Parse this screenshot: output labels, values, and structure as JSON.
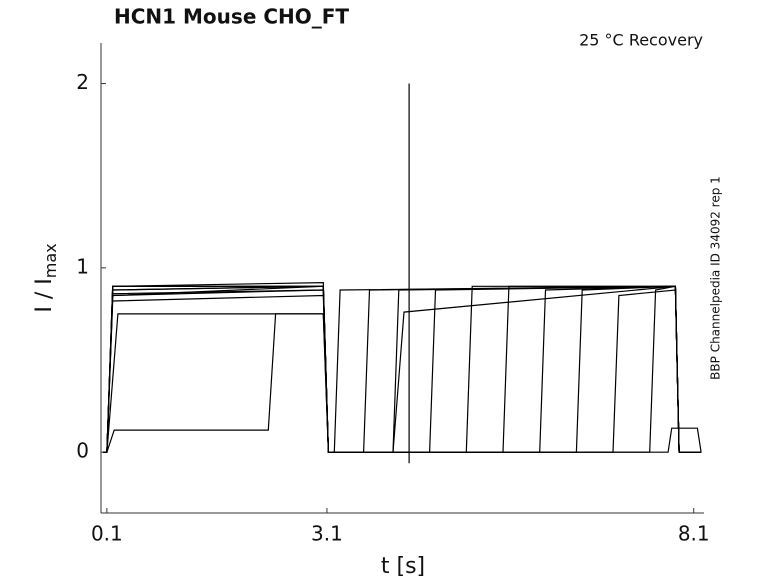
{
  "chart_data": {
    "type": "line",
    "title": "HCN1  Mouse  CHO_FT",
    "annotation": "25 °C  Recovery",
    "side_text": "BBP Channelpedia ID 34092 rep 1",
    "xlabel": "t [s]",
    "ylabel": {
      "text": "I / I",
      "sub": "max"
    },
    "color": "#000000",
    "xlim": [
      0.02,
      8.24
    ],
    "ylim": [
      -0.33,
      2.22
    ],
    "xticks": [
      0.1,
      3.1,
      8.1
    ],
    "yticks": [
      0,
      1,
      2
    ],
    "series": [
      {
        "x": [
          0.05,
          0.1,
          0.18,
          3.05,
          3.12,
          3.2,
          3.28,
          7.85,
          7.9,
          8.2
        ],
        "values": [
          0,
          0,
          0.85,
          0.9,
          0,
          0,
          0.88,
          0.9,
          0,
          0
        ]
      },
      {
        "x": [
          0.05,
          0.1,
          0.18,
          3.05,
          3.12,
          3.6,
          3.68,
          7.85,
          7.9,
          8.2
        ],
        "values": [
          0,
          0,
          0.88,
          0.9,
          0,
          0,
          0.88,
          0.9,
          0,
          0
        ]
      },
      {
        "x": [
          0.05,
          0.1,
          0.18,
          3.05,
          3.12,
          4.0,
          4.08,
          7.85,
          7.9,
          8.2
        ],
        "values": [
          0,
          0,
          0.9,
          0.9,
          0,
          0,
          0.88,
          0.9,
          0,
          0
        ]
      },
      {
        "x": [
          0.05,
          0.1,
          0.18,
          3.05,
          3.12,
          4.5,
          4.58,
          7.85,
          7.9,
          8.2
        ],
        "values": [
          0,
          0,
          0.85,
          0.88,
          0,
          0,
          0.88,
          0.9,
          0,
          0
        ]
      },
      {
        "x": [
          0.05,
          0.1,
          0.18,
          3.05,
          3.12,
          5.0,
          5.08,
          7.85,
          7.9,
          8.2
        ],
        "values": [
          0,
          0,
          0.9,
          0.92,
          0,
          0,
          0.9,
          0.9,
          0,
          0
        ]
      },
      {
        "x": [
          0.05,
          0.1,
          0.18,
          3.05,
          3.12,
          5.5,
          5.58,
          7.85,
          7.9,
          8.2
        ],
        "values": [
          0,
          0,
          0.88,
          0.9,
          0,
          0,
          0.9,
          0.9,
          0,
          0
        ]
      },
      {
        "x": [
          0.05,
          0.1,
          0.18,
          3.05,
          3.12,
          6.0,
          6.08,
          7.85,
          7.9,
          8.2
        ],
        "values": [
          0,
          0,
          0.82,
          0.85,
          0,
          0,
          0.88,
          0.9,
          0,
          0
        ]
      },
      {
        "x": [
          0.05,
          0.1,
          0.18,
          3.05,
          3.12,
          6.5,
          6.58,
          7.85,
          7.9,
          8.2
        ],
        "values": [
          0,
          0,
          0.9,
          0.9,
          0,
          0,
          0.88,
          0.9,
          0,
          0
        ]
      },
      {
        "x": [
          0.05,
          0.1,
          0.18,
          3.05,
          3.12,
          7.0,
          7.08,
          7.85,
          7.9,
          8.2
        ],
        "values": [
          0,
          0,
          0.86,
          0.88,
          0,
          0,
          0.85,
          0.88,
          0,
          0
        ]
      },
      {
        "x": [
          0.05,
          0.1,
          0.18,
          3.05,
          3.12,
          7.5,
          7.58,
          7.85,
          7.9,
          8.2
        ],
        "values": [
          0,
          0,
          0.9,
          0.9,
          0,
          0,
          0.88,
          0.9,
          0,
          0
        ]
      },
      {
        "x": [
          0.05,
          0.1,
          0.25,
          3.05,
          3.12,
          4.0,
          4.15,
          7.85,
          7.9,
          8.2
        ],
        "values": [
          0,
          0,
          0.75,
          0.75,
          0,
          0,
          0.76,
          0.9,
          0,
          0
        ]
      },
      {
        "x": [
          0.05,
          0.1,
          0.2,
          2.3,
          2.4,
          3.05,
          3.12,
          7.75,
          7.8,
          8.15,
          8.2
        ],
        "values": [
          0,
          0,
          0.12,
          0.12,
          0.75,
          0.75,
          0,
          0,
          0.13,
          0.13,
          0
        ]
      },
      {
        "x": [
          4.22,
          4.22
        ],
        "values": [
          -0.06,
          2.0
        ]
      }
    ]
  }
}
